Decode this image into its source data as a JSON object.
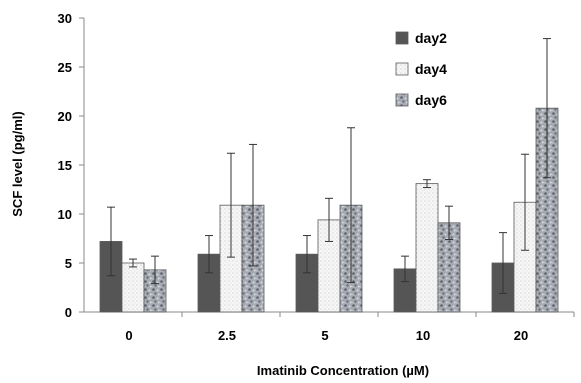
{
  "chart_data": {
    "type": "bar",
    "ylabel": "SCF level (pg/ml)",
    "xlabel": "Imatinib Concentration (µM)",
    "ylim": [
      0,
      30
    ],
    "y_ticks": [
      0,
      5,
      10,
      15,
      20,
      25,
      30
    ],
    "categories": [
      "0",
      "2.5",
      "5",
      "10",
      "20"
    ],
    "legend_position": "top-right",
    "grid": false,
    "series": [
      {
        "name": "day2",
        "values": [
          7.2,
          5.9,
          5.9,
          4.4,
          5.0
        ],
        "errors": [
          3.5,
          1.9,
          1.9,
          1.3,
          3.1
        ],
        "color": "#555555",
        "pattern": "solid"
      },
      {
        "name": "day4",
        "values": [
          5.0,
          10.9,
          9.4,
          13.1,
          11.2
        ],
        "errors": [
          0.4,
          5.3,
          2.2,
          0.4,
          4.9
        ],
        "color": "#f3f3f3",
        "pattern": "light-dots"
      },
      {
        "name": "day6",
        "values": [
          4.3,
          10.9,
          10.9,
          9.1,
          20.8
        ],
        "errors": [
          1.4,
          6.2,
          7.9,
          1.7,
          7.1
        ],
        "color": "#9a9ea6",
        "pattern": "mottled"
      }
    ]
  }
}
